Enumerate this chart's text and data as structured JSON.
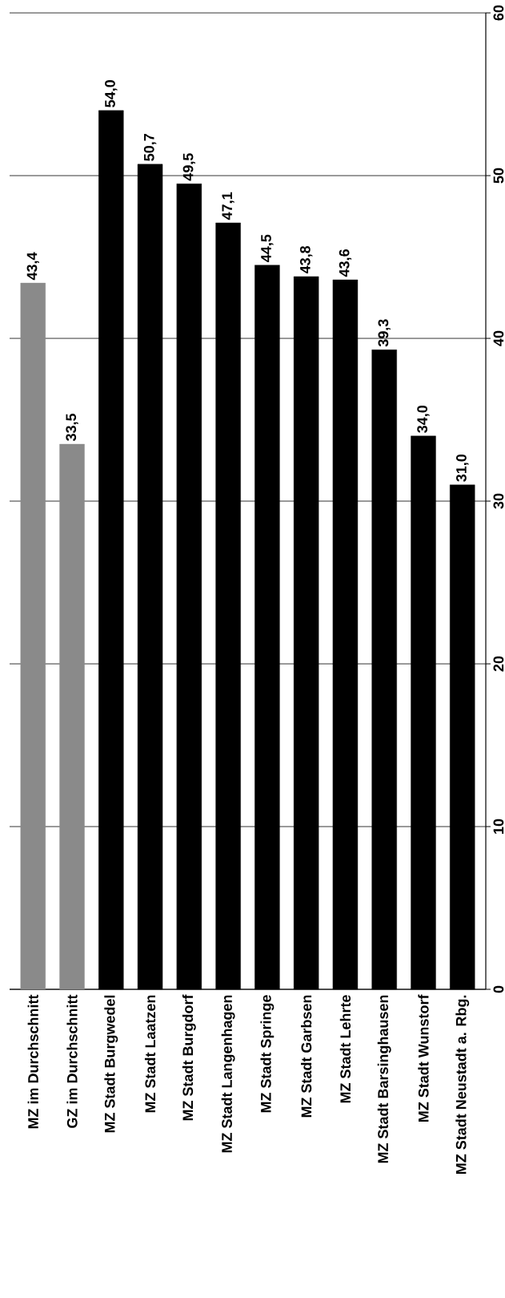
{
  "chart_data": {
    "type": "bar",
    "categories": [
      "MZ im Durchschnitt",
      "GZ im Durchschnitt",
      "MZ Stadt Burgwedel",
      "MZ Stadt Laatzen",
      "MZ Stadt Burgdorf",
      "MZ Stadt Langenhagen",
      "MZ Stadt Springe",
      "MZ Stadt Garbsen",
      "MZ Stadt Lehrte",
      "MZ Stadt Barsinghausen",
      "MZ Stadt Wunstorf",
      "MZ Stadt Neustadt a. Rbg."
    ],
    "values": [
      43.4,
      33.5,
      54.0,
      50.7,
      49.5,
      47.1,
      44.5,
      43.8,
      43.6,
      39.3,
      34.0,
      31.0
    ],
    "value_labels": [
      "43,4",
      "33,5",
      "54,0",
      "50,7",
      "49,5",
      "47,1",
      "44,5",
      "43,8",
      "43,6",
      "39,3",
      "34,0",
      "31,0"
    ],
    "colors": [
      "#8a8a8a",
      "#8a8a8a",
      "#000000",
      "#000000",
      "#000000",
      "#000000",
      "#000000",
      "#000000",
      "#000000",
      "#000000",
      "#000000",
      "#000000"
    ],
    "ylim": [
      0,
      60
    ],
    "yticks": [
      0,
      10,
      20,
      30,
      40,
      50,
      60
    ],
    "grid": "y"
  }
}
